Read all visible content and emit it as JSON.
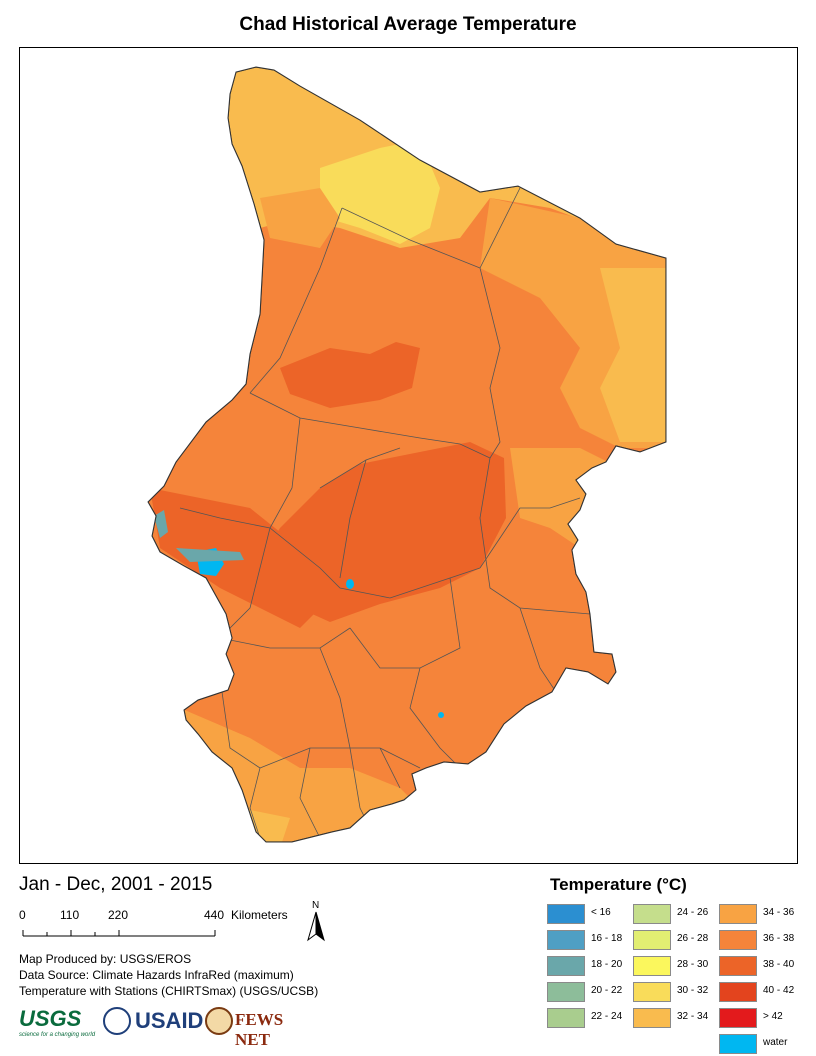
{
  "title": "Chad Historical Average Temperature",
  "period": "Jan - Dec, 2001 - 2015",
  "scale_bar": {
    "ticks": [
      "0",
      "110",
      "220",
      "440"
    ],
    "unit": "Kilometers"
  },
  "north_label": "N",
  "credits": [
    "Map Produced by: USGS/EROS",
    "Data Source: Climate Hazards InfraRed (maximum)",
    "Temperature with Stations (CHIRTSmax) (USGS/UCSB)"
  ],
  "logos": {
    "usgs": "USGS",
    "usgs_tagline": "science for a changing world",
    "usaid": "USAID",
    "fews": "FEWS NET"
  },
  "legend": {
    "title": "Temperature (°C)",
    "items": [
      {
        "label": "< 16",
        "color": "#2b8fd1"
      },
      {
        "label": "16 - 18",
        "color": "#4f9fc4"
      },
      {
        "label": "18 - 20",
        "color": "#6aa7aa"
      },
      {
        "label": "20 - 22",
        "color": "#8dbd9a"
      },
      {
        "label": "22 - 24",
        "color": "#a9cd8e"
      },
      {
        "label": "24 - 26",
        "color": "#c5de8c"
      },
      {
        "label": "26 - 28",
        "color": "#e2ee72"
      },
      {
        "label": "28 - 30",
        "color": "#fbf75d"
      },
      {
        "label": "30 - 32",
        "color": "#f9dc5a"
      },
      {
        "label": "32 - 34",
        "color": "#f9bb4e"
      },
      {
        "label": "34 - 36",
        "color": "#f8a343"
      },
      {
        "label": "36 - 38",
        "color": "#f5843a"
      },
      {
        "label": "38 - 40",
        "color": "#ec6428"
      },
      {
        "label": "40 - 42",
        "color": "#e3441e"
      },
      {
        "label": "> 42",
        "color": "#e31a1c"
      },
      {
        "label": "water",
        "color": "#00b7f1"
      }
    ]
  }
}
